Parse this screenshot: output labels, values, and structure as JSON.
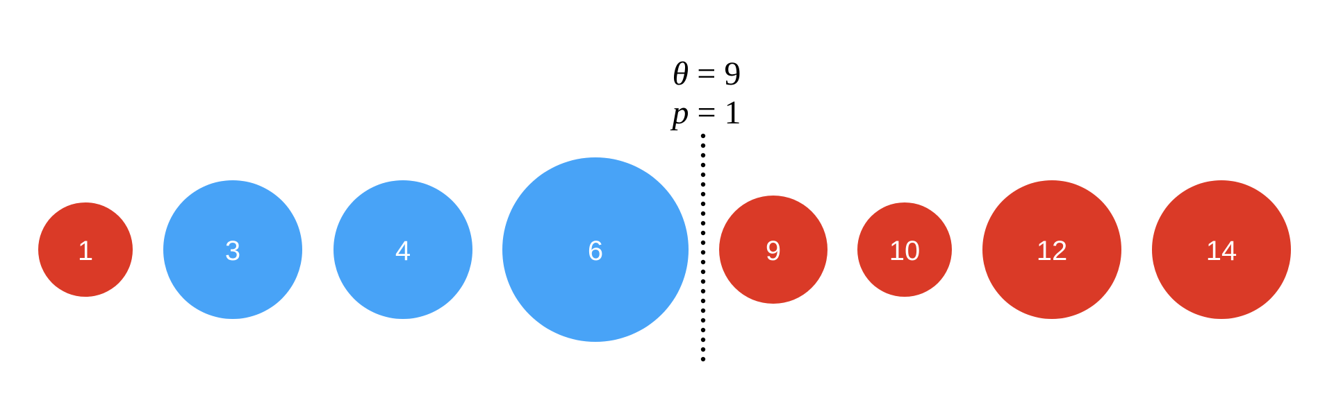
{
  "threshold": {
    "theta_symbol": "θ",
    "theta_value": "9",
    "p_symbol": "p",
    "p_value": "1",
    "equals": "="
  },
  "colors": {
    "left_group": "#48A3F7",
    "right_group": "#DA3A27",
    "outlier": "#DA3A27",
    "divider": "#000000"
  },
  "nodes": [
    {
      "label": "1",
      "group": "outlier"
    },
    {
      "label": "3",
      "group": "left_group"
    },
    {
      "label": "4",
      "group": "left_group"
    },
    {
      "label": "6",
      "group": "left_group"
    },
    {
      "label": "9",
      "group": "right_group"
    },
    {
      "label": "10",
      "group": "right_group"
    },
    {
      "label": "12",
      "group": "right_group"
    },
    {
      "label": "14",
      "group": "right_group"
    }
  ]
}
